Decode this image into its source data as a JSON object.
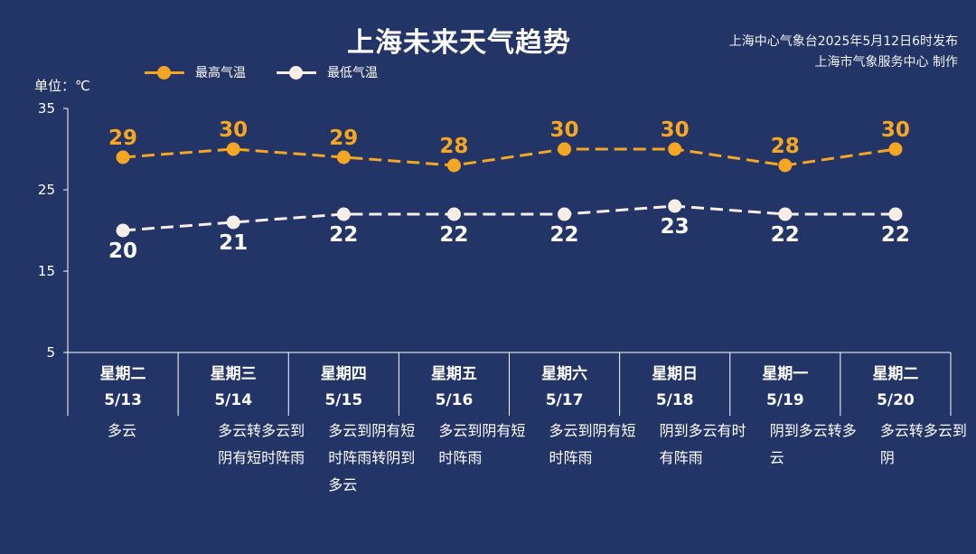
{
  "title": "上海未来天气趋势",
  "publisher": {
    "line1": "上海中心气象台2025年5月12日6时发布",
    "line2": "上海市气象服务中心 制作"
  },
  "unit_label": "单位：℃",
  "colors": {
    "background": "#233466",
    "high": "#F5A623",
    "low": "#F7EEE8"
  },
  "days": [
    {
      "weekday": "星期二",
      "date": "5/13",
      "weather": "多云"
    },
    {
      "weekday": "星期三",
      "date": "5/14",
      "weather": "多云转多云到阴有短时阵雨"
    },
    {
      "weekday": "星期四",
      "date": "5/15",
      "weather": "多云到阴有短时阵雨转阴到多云"
    },
    {
      "weekday": "星期五",
      "date": "5/16",
      "weather": "多云到阴有短时阵雨"
    },
    {
      "weekday": "星期六",
      "date": "5/17",
      "weather": "多云到阴有短时阵雨"
    },
    {
      "weekday": "星期日",
      "date": "5/18",
      "weather": "阴到多云有时有阵雨"
    },
    {
      "weekday": "星期一",
      "date": "5/19",
      "weather": "阴到多云转多云"
    },
    {
      "weekday": "星期二",
      "date": "5/20",
      "weather": "多云转多云到阴"
    }
  ],
  "chart_data": {
    "type": "line",
    "categories": [
      "5/13",
      "5/14",
      "5/15",
      "5/16",
      "5/17",
      "5/18",
      "5/19",
      "5/20"
    ],
    "series": [
      {
        "name": "最高气温",
        "values": [
          29,
          30,
          29,
          28,
          30,
          30,
          28,
          30
        ]
      },
      {
        "name": "最低气温",
        "values": [
          20,
          21,
          22,
          22,
          22,
          23,
          22,
          22
        ]
      }
    ],
    "yticks": [
      35,
      25,
      15,
      5
    ],
    "ylim": [
      5,
      35
    ],
    "ylabel": "单位：℃",
    "line_style": "dashed",
    "data_labels": true,
    "legend_position": "top-left"
  }
}
